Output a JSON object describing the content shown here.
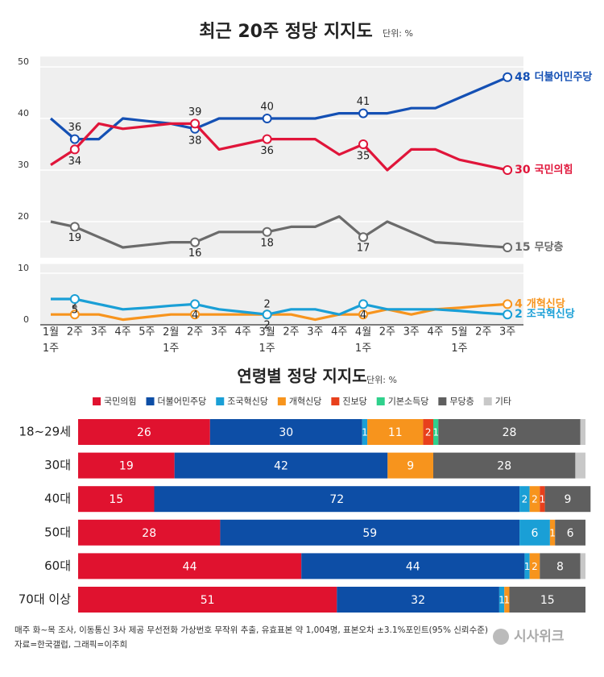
{
  "chart_data": [
    {
      "type": "line",
      "title": "최근 20주 정당 지지도",
      "unit": "단위: %",
      "categories": [
        "1월 1주",
        "2주",
        "3주",
        "4주",
        "5주",
        "2월 1주",
        "2주",
        "3주",
        "4주",
        "3월 1주",
        "2주",
        "3주",
        "4주",
        "4월 1주",
        "2주",
        "3주",
        "4주",
        "5월 1주",
        "2주",
        "3주"
      ],
      "ylim": [
        0,
        52
      ],
      "yticks": [
        0,
        10,
        20,
        30,
        40,
        50
      ],
      "grid": true,
      "labeled_points": [
        1,
        6,
        9,
        13,
        19
      ],
      "series": [
        {
          "name": "더불어민주당",
          "color": "#1450b4",
          "values": [
            40,
            36,
            36,
            40,
            39.5,
            39,
            38,
            40,
            40,
            40,
            40,
            40,
            41,
            41,
            41,
            42,
            42,
            44,
            46,
            48
          ]
        },
        {
          "name": "국민의힘",
          "color": "#e0153a",
          "values": [
            31,
            34,
            39,
            38,
            38.5,
            39,
            39,
            34,
            35,
            36,
            36,
            36,
            33,
            35,
            30,
            34,
            34,
            32,
            31,
            30
          ]
        },
        {
          "name": "무당층",
          "color": "#6b6b6b",
          "values": [
            20,
            19,
            17,
            15,
            15.5,
            16,
            16,
            18,
            18,
            18,
            19,
            19,
            21,
            17,
            20,
            18,
            16,
            15.7,
            15.3,
            15
          ]
        },
        {
          "name": "개혁신당",
          "color": "#f7941d",
          "values": [
            2,
            2,
            2,
            1,
            1.5,
            2,
            2,
            2,
            2,
            2,
            2,
            1,
            2,
            2,
            3,
            2,
            3,
            3.3,
            3.7,
            4
          ]
        },
        {
          "name": "조국혁신당",
          "color": "#1a9fd6",
          "values": [
            5,
            5,
            4,
            3,
            3.3,
            3.7,
            4,
            3,
            2.5,
            2,
            3,
            3,
            2,
            4,
            3,
            3,
            3,
            2.7,
            2.3,
            2
          ]
        }
      ]
    },
    {
      "type": "stacked_bar",
      "title": "연령별 정당 지지도",
      "unit": "단위: %",
      "categories": [
        "18~29세",
        "30대",
        "40대",
        "50대",
        "60대",
        "70대 이상"
      ],
      "xlim": [
        0,
        100
      ],
      "series": [
        {
          "name": "국민의힘",
          "color": "#e0122f",
          "values": [
            26,
            19,
            15,
            28,
            44,
            51
          ]
        },
        {
          "name": "더불어민주당",
          "color": "#0d4ea6",
          "values": [
            30,
            42,
            72,
            59,
            44,
            32
          ]
        },
        {
          "name": "조국혁신당",
          "color": "#1a9fd6",
          "values": [
            1,
            null,
            2,
            6,
            1,
            1
          ]
        },
        {
          "name": "개혁신당",
          "color": "#f7941d",
          "values": [
            11,
            9,
            2,
            1,
            2,
            1
          ]
        },
        {
          "name": "진보당",
          "color": "#e8401c",
          "values": [
            2,
            null,
            1,
            null,
            null,
            null
          ]
        },
        {
          "name": "기본소득당",
          "color": "#2fd18c",
          "values": [
            1,
            null,
            null,
            null,
            null,
            null
          ]
        },
        {
          "name": "무당층",
          "color": "#5f5f5f",
          "values": [
            28,
            28,
            9,
            6,
            8,
            15
          ]
        },
        {
          "name": "기타",
          "color": "#c8c8c8",
          "values": [
            1,
            2,
            null,
            null,
            1,
            null
          ],
          "labels": false
        }
      ]
    }
  ],
  "footer": {
    "note": "매주 화~목 조사, 이동통신 3사 제공 무선전화 가상번호 무작위 추출, 유효표본 약 1,004명, 표본오차 ±3.1%포인트(95% 신뢰수준)",
    "source": "자료=한국갤럽, 그래픽=이주희",
    "logo": "시사위크"
  }
}
